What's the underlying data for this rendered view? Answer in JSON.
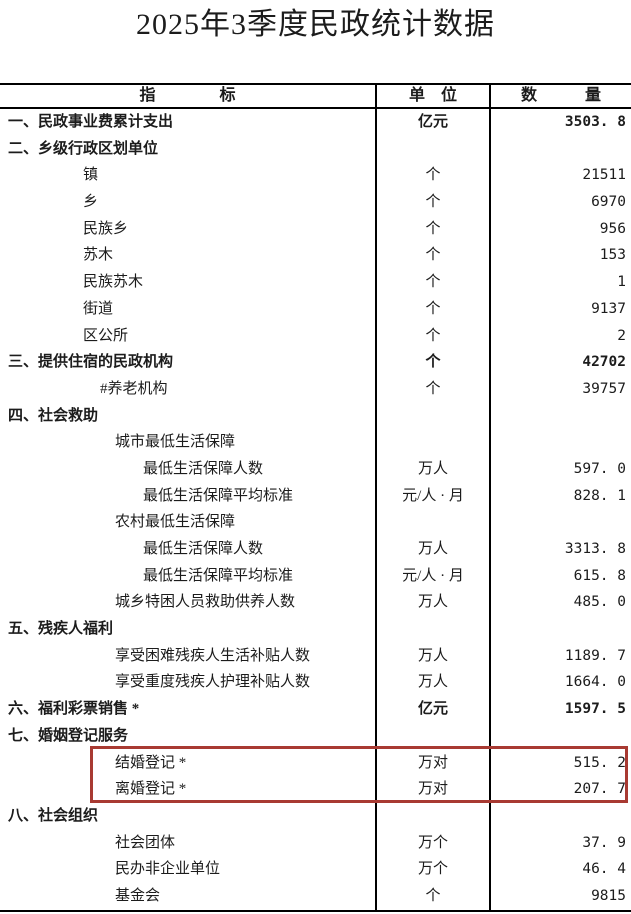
{
  "title": "2025年3季度民政统计数据",
  "table": {
    "header": {
      "indicator": "指　　　　标",
      "unit": "单　位",
      "quantity": "数　　　量"
    },
    "rows": [
      {
        "label": "一、民政事业费累计支出",
        "indent": 0,
        "bold": true,
        "unit": "亿元",
        "value": "3503. 8",
        "highlight": false
      },
      {
        "label": "二、乡级行政区划单位",
        "indent": 0,
        "bold": true,
        "unit": "",
        "value": "",
        "highlight": false
      },
      {
        "label": "镇",
        "indent": 1,
        "bold": false,
        "unit": "个",
        "value": "21511",
        "highlight": false
      },
      {
        "label": "乡",
        "indent": 1,
        "bold": false,
        "unit": "个",
        "value": "6970",
        "highlight": false
      },
      {
        "label": "民族乡",
        "indent": 1,
        "bold": false,
        "unit": "个",
        "value": "956",
        "highlight": false
      },
      {
        "label": "苏木",
        "indent": 1,
        "bold": false,
        "unit": "个",
        "value": "153",
        "highlight": false
      },
      {
        "label": "民族苏木",
        "indent": 1,
        "bold": false,
        "unit": "个",
        "value": "1",
        "highlight": false
      },
      {
        "label": "街道",
        "indent": 1,
        "bold": false,
        "unit": "个",
        "value": "9137",
        "highlight": false
      },
      {
        "label": "区公所",
        "indent": 1,
        "bold": false,
        "unit": "个",
        "value": "2",
        "highlight": false
      },
      {
        "label": "三、提供住宿的民政机构",
        "indent": 0,
        "bold": true,
        "unit": "个",
        "value": "42702",
        "highlight": false
      },
      {
        "label": "#养老机构",
        "indent": 2,
        "bold": false,
        "unit": "个",
        "value": "39757",
        "highlight": false
      },
      {
        "label": "四、社会救助",
        "indent": 0,
        "bold": true,
        "unit": "",
        "value": "",
        "highlight": false
      },
      {
        "label": "城市最低生活保障",
        "indent": 3,
        "bold": false,
        "unit": "",
        "value": "",
        "highlight": false
      },
      {
        "label": "最低生活保障人数",
        "indent": 4,
        "bold": false,
        "unit": "万人",
        "value": "597. 0",
        "highlight": false
      },
      {
        "label": "最低生活保障平均标准",
        "indent": 4,
        "bold": false,
        "unit": "元/人 · 月",
        "value": "828. 1",
        "highlight": false
      },
      {
        "label": "农村最低生活保障",
        "indent": 3,
        "bold": false,
        "unit": "",
        "value": "",
        "highlight": false
      },
      {
        "label": "最低生活保障人数",
        "indent": 4,
        "bold": false,
        "unit": "万人",
        "value": "3313. 8",
        "highlight": false
      },
      {
        "label": "最低生活保障平均标准",
        "indent": 4,
        "bold": false,
        "unit": "元/人 · 月",
        "value": "615. 8",
        "highlight": false
      },
      {
        "label": "城乡特困人员救助供养人数",
        "indent": 3,
        "bold": false,
        "unit": "万人",
        "value": "485. 0",
        "highlight": false
      },
      {
        "label": "五、残疾人福利",
        "indent": 0,
        "bold": true,
        "unit": "",
        "value": "",
        "highlight": false
      },
      {
        "label": "享受困难残疾人生活补贴人数",
        "indent": 3,
        "bold": false,
        "unit": "万人",
        "value": "1189. 7",
        "highlight": false
      },
      {
        "label": "享受重度残疾人护理补贴人数",
        "indent": 3,
        "bold": false,
        "unit": "万人",
        "value": "1664. 0",
        "highlight": false
      },
      {
        "label": "六、福利彩票销售 *",
        "indent": 0,
        "bold": true,
        "unit": "亿元",
        "value": "1597. 5",
        "highlight": false
      },
      {
        "label": "七、婚姻登记服务",
        "indent": 0,
        "bold": true,
        "unit": "",
        "value": "",
        "highlight": false
      },
      {
        "label": "结婚登记 *",
        "indent": 3,
        "bold": false,
        "unit": "万对",
        "value": "515. 2",
        "highlight": true
      },
      {
        "label": "离婚登记 *",
        "indent": 3,
        "bold": false,
        "unit": "万对",
        "value": "207. 7",
        "highlight": true
      },
      {
        "label": "八、社会组织",
        "indent": 0,
        "bold": true,
        "unit": "",
        "value": "",
        "highlight": false
      },
      {
        "label": "社会团体",
        "indent": 3,
        "bold": false,
        "unit": "万个",
        "value": "37. 9",
        "highlight": false
      },
      {
        "label": "民办非企业单位",
        "indent": 3,
        "bold": false,
        "unit": "万个",
        "value": "46. 4",
        "highlight": false
      },
      {
        "label": "基金会",
        "indent": 3,
        "bold": false,
        "unit": "个",
        "value": "9815",
        "highlight": false
      }
    ]
  },
  "annotation": {
    "highlight_border_color": "#a83a32"
  }
}
